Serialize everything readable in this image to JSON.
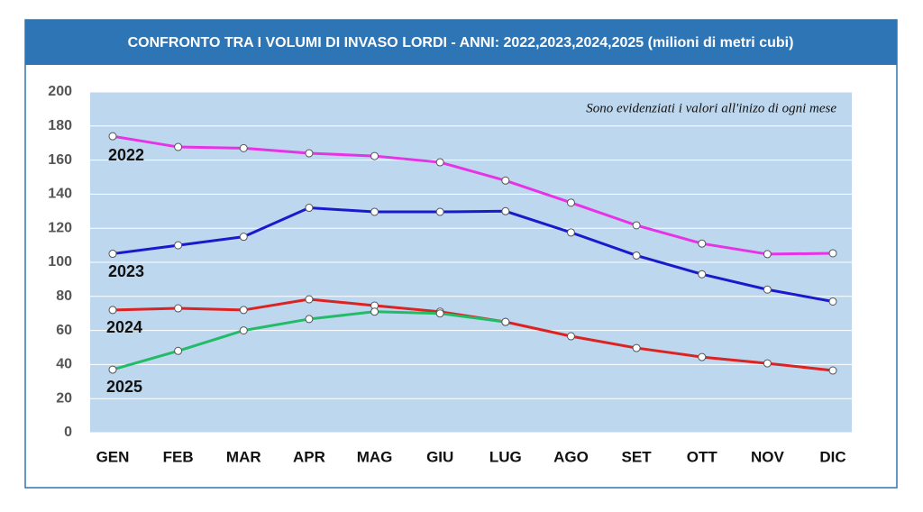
{
  "chart_data": {
    "type": "line",
    "title": "CONFRONTO TRA I VOLUMI DI INVASO LORDI - ANNI: 2022,2023,2024,2025 (milioni di metri cubi)",
    "annotation": "Sono evidenziati i valori all'inizo di ogni mese",
    "categories": [
      "GEN",
      "FEB",
      "MAR",
      "APR",
      "MAG",
      "GIU",
      "LUG",
      "AGO",
      "SET",
      "OTT",
      "NOV",
      "DIC"
    ],
    "series": [
      {
        "name": "2022",
        "color": "#e633e6",
        "values": [
          174,
          167.7,
          167,
          164,
          162.4,
          158.7,
          148,
          135,
          121.7,
          111,
          104.8,
          105.3
        ]
      },
      {
        "name": "2023",
        "color": "#1a1acc",
        "values": [
          105,
          110,
          115,
          132,
          129.6,
          129.6,
          130,
          117.5,
          104,
          93,
          84,
          77
        ]
      },
      {
        "name": "2024",
        "color": "#dd2222",
        "values": [
          72,
          73,
          72,
          78.3,
          74.6,
          71,
          65,
          56.6,
          49.7,
          44.4,
          40.7,
          36.5
        ]
      },
      {
        "name": "2025",
        "color": "#22bb66",
        "values": [
          37,
          48,
          60,
          66.7,
          71,
          70,
          65,
          null,
          null,
          null,
          null,
          null
        ]
      }
    ],
    "ylim": [
      0,
      200
    ],
    "yticks": [
      0,
      20,
      40,
      60,
      80,
      100,
      120,
      140,
      160,
      180,
      200
    ],
    "grid": true
  }
}
